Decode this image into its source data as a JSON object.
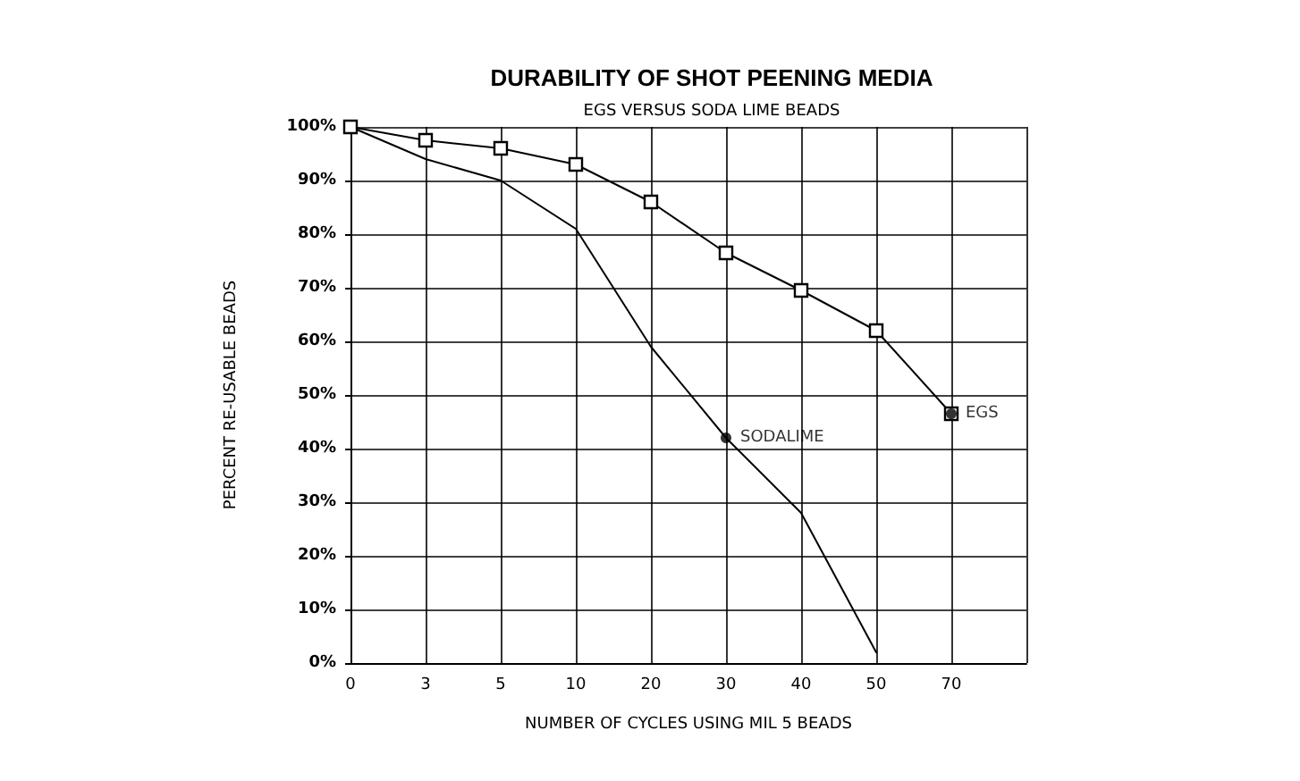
{
  "chart_data": {
    "type": "line",
    "title": "DURABILITY OF SHOT PEENING MEDIA",
    "subtitle": "EGS VERSUS SODA LIME BEADS",
    "xlabel": "NUMBER OF CYCLES USING MIL 5 BEADS",
    "ylabel": "PERCENT RE-USABLE BEADS",
    "categories": [
      "0",
      "3",
      "5",
      "10",
      "20",
      "30",
      "40",
      "50",
      "70",
      null
    ],
    "series": [
      {
        "color": "#000000",
        "marker": "square",
        "values": [
          100,
          97.5,
          96,
          93,
          86,
          76.5,
          69.5,
          62,
          46.5,
          null
        ]
      },
      {
        "color": "#000000",
        "marker": "none",
        "values": [
          100,
          94,
          90,
          81,
          59,
          42,
          28,
          2,
          null,
          null
        ]
      }
    ],
    "annotations": [
      {
        "text": "EGS",
        "x": "70",
        "y": 46.5
      },
      {
        "text": "SODALIME",
        "x": "30",
        "y": 42
      }
    ],
    "ylim": [
      0,
      100
    ],
    "yticks": [
      {
        "value": 0,
        "label": "0%"
      },
      {
        "value": 10,
        "label": "10%"
      },
      {
        "value": 20,
        "label": "20%"
      },
      {
        "value": 30,
        "label": "30%"
      },
      {
        "value": 40,
        "label": "40%"
      },
      {
        "value": 50,
        "label": "50%"
      },
      {
        "value": 60,
        "label": "60%"
      },
      {
        "value": 70,
        "label": "70%"
      },
      {
        "value": 80,
        "label": "80%"
      },
      {
        "value": 90,
        "label": "90%"
      },
      {
        "value": 100,
        "label": "100%"
      }
    ],
    "grid": true,
    "line_style": "solid"
  }
}
